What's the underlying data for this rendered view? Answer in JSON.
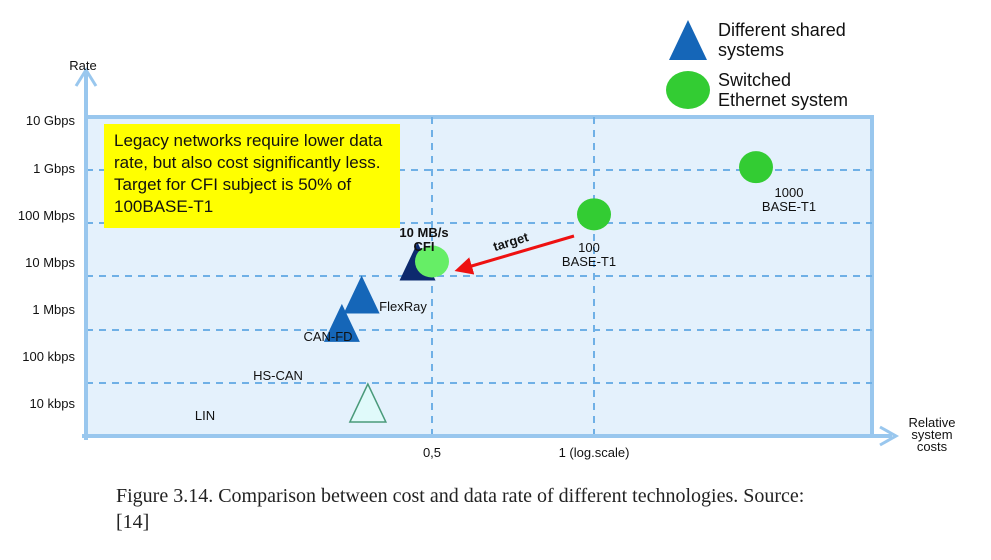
{
  "chart_data": {
    "type": "scatter",
    "xlabel": "Relative system costs",
    "xlabel_lines": [
      "Relative",
      "system",
      "costs"
    ],
    "ylabel": "Rate",
    "x_ticks": [
      "0,5",
      "1 (log.scale)"
    ],
    "x_scale": "log",
    "y_ticks": [
      "10 Gbps",
      "1 Gbps",
      "100 Mbps",
      "10 Mbps",
      "1 Mbps",
      "100 kbps",
      "10 kbps"
    ],
    "y_scale": "log",
    "grid": true,
    "legend": {
      "placement": "top-right",
      "entries": [
        {
          "name": "Different shared systems",
          "lines": [
            "Different shared",
            "systems"
          ],
          "marker": "triangle",
          "color": "#1566b8"
        },
        {
          "name": "Switched Ethernet system",
          "lines": [
            "Switched",
            "Ethernet system"
          ],
          "marker": "ellipse",
          "color": "#33cc33"
        }
      ]
    },
    "points": [
      {
        "label": "LIN",
        "lines": [
          "LIN"
        ],
        "x": 0.38,
        "y": "10 kbps",
        "marker": "triangle",
        "color": "#e0fafa",
        "stroke": "#4a9a7a"
      },
      {
        "label": "HS-CAN",
        "lines": [
          "HS-CAN"
        ],
        "x": 0.34,
        "y": "500 kbps",
        "marker": "triangle",
        "color": "#1566b8"
      },
      {
        "label": "CAN-FD",
        "lines": [
          "CAN-FD"
        ],
        "x": 0.37,
        "y": "2 Mbps",
        "marker": "triangle",
        "color": "#1566b8"
      },
      {
        "label": "FlexRay",
        "lines": [
          "FlexRay"
        ],
        "x": 0.47,
        "y": "10 Mbps",
        "marker": "triangle",
        "color": "#0d2a6e"
      },
      {
        "label": "10 MB/s CFI",
        "lines": [
          "10 MB/s",
          "CFI"
        ],
        "x": 0.5,
        "y": "10 Mbps",
        "marker": "ellipse",
        "color": "#66ee66"
      },
      {
        "label": "100 BASE-T1",
        "lines": [
          "100",
          "BASE-T1"
        ],
        "x": 1.0,
        "y": "100 Mbps",
        "marker": "ellipse",
        "color": "#33cc33"
      },
      {
        "label": "1000 BASE-T1",
        "lines": [
          "1000",
          "BASE-T1"
        ],
        "x": 2.0,
        "y": "1 Gbps",
        "marker": "ellipse",
        "color": "#33cc33"
      }
    ],
    "annotations": [
      {
        "text": "target",
        "color": "#ee1111",
        "from": "100 BASE-T1",
        "to": "10 MB/s CFI"
      }
    ],
    "colors": {
      "plot_bg": "#e4f1fc",
      "frame": "#99c7ee",
      "grid": "#6fb0e6",
      "arrow": "#ee1111"
    }
  },
  "note_text": "Legacy networks require lower data rate, but also cost significantly less. Target for CFI subject is 50% of 100BASE-T1",
  "caption": "Figure 3.14.   Comparison between cost and data rate of different technologies. Source: [14]"
}
